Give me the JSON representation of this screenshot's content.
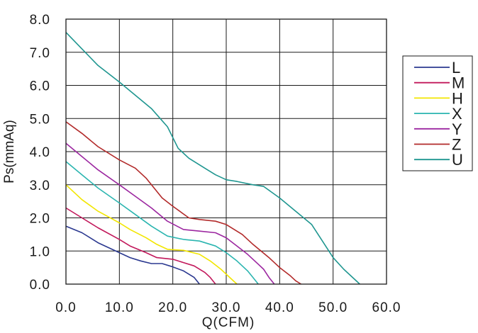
{
  "chart_data": {
    "type": "line",
    "title": "",
    "xlabel": "Q(CFM)",
    "ylabel": "Ps(mmAq)",
    "xlim": [
      0,
      60
    ],
    "ylim": [
      0,
      8
    ],
    "x_ticks": [
      "0.0",
      "10.0",
      "20.0",
      "30.0",
      "40.0",
      "50.0",
      "60.0"
    ],
    "y_ticks": [
      "0.0",
      "1.0",
      "2.0",
      "3.0",
      "4.0",
      "5.0",
      "6.0",
      "7.0",
      "8.0"
    ],
    "grid": true,
    "legend_position": "right",
    "series": [
      {
        "name": "L",
        "color": "#2b3990",
        "x": [
          0,
          3,
          6,
          10,
          12,
          14,
          16,
          18,
          20,
          22,
          24,
          25
        ],
        "y": [
          1.75,
          1.55,
          1.25,
          0.95,
          0.8,
          0.7,
          0.62,
          0.62,
          0.52,
          0.4,
          0.2,
          0.0
        ]
      },
      {
        "name": "M",
        "color": "#c2185b",
        "x": [
          0,
          3,
          6,
          10,
          12,
          15,
          17,
          20,
          22,
          24,
          26,
          27,
          28
        ],
        "y": [
          2.3,
          2.0,
          1.7,
          1.35,
          1.15,
          0.95,
          0.8,
          0.75,
          0.65,
          0.55,
          0.35,
          0.2,
          0.0
        ]
      },
      {
        "name": "H",
        "color": "#f2e600",
        "x": [
          0,
          3,
          6,
          10,
          12,
          15,
          17,
          19,
          22,
          25,
          27,
          29,
          31,
          32
        ],
        "y": [
          3.0,
          2.55,
          2.2,
          1.85,
          1.65,
          1.4,
          1.2,
          1.05,
          1.02,
          0.9,
          0.7,
          0.45,
          0.15,
          0.0
        ]
      },
      {
        "name": "X",
        "color": "#2bb5b0",
        "x": [
          0,
          3,
          6,
          10,
          13,
          16,
          19,
          22,
          25,
          28,
          30,
          32,
          34,
          35,
          36
        ],
        "y": [
          3.7,
          3.3,
          2.9,
          2.45,
          2.1,
          1.75,
          1.45,
          1.35,
          1.3,
          1.15,
          0.95,
          0.7,
          0.4,
          0.2,
          0.0
        ]
      },
      {
        "name": "Y",
        "color": "#9c27a0",
        "x": [
          0,
          3,
          6,
          10,
          13,
          16,
          19,
          22,
          25,
          28,
          30,
          32,
          34,
          36,
          37,
          38,
          39
        ],
        "y": [
          4.25,
          3.85,
          3.45,
          3.0,
          2.65,
          2.3,
          1.9,
          1.65,
          1.6,
          1.55,
          1.4,
          1.15,
          0.9,
          0.6,
          0.45,
          0.2,
          0.0
        ]
      },
      {
        "name": "Z",
        "color": "#b22a2a",
        "x": [
          0,
          3,
          6,
          10,
          13,
          15,
          18,
          20,
          23,
          25,
          28,
          30,
          33,
          35,
          38,
          40,
          42,
          43,
          44
        ],
        "y": [
          4.9,
          4.55,
          4.15,
          3.75,
          3.5,
          3.2,
          2.6,
          2.35,
          2.0,
          1.95,
          1.9,
          1.8,
          1.5,
          1.2,
          0.8,
          0.5,
          0.25,
          0.1,
          0.0
        ]
      },
      {
        "name": "U",
        "color": "#1f9690",
        "x": [
          0,
          3,
          6,
          10,
          13,
          16,
          19,
          21,
          23,
          26,
          28,
          30,
          32,
          35,
          37,
          40,
          43,
          46,
          48,
          50,
          52,
          54,
          55
        ],
        "y": [
          7.6,
          7.1,
          6.6,
          6.1,
          5.7,
          5.3,
          4.75,
          4.1,
          3.8,
          3.5,
          3.3,
          3.15,
          3.1,
          3.0,
          2.95,
          2.6,
          2.2,
          1.8,
          1.3,
          0.8,
          0.45,
          0.15,
          0.0
        ]
      }
    ]
  }
}
